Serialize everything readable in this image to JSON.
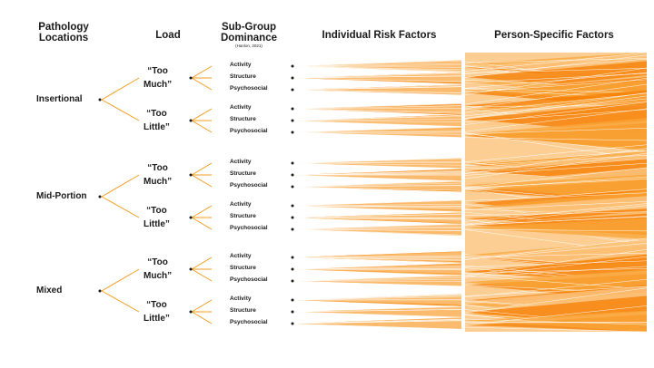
{
  "headers": {
    "pathology_locations": "Pathology Locations",
    "load": "Load",
    "sub_group_dominance": "Sub-Group Dominance",
    "sub_group_citation": "(Hanlon, 2021)",
    "individual_risk_factors": "Individual Risk Factors",
    "person_specific_factors": "Person-Specific Factors"
  },
  "locations": [
    {
      "label": "Insertional",
      "loads": [
        {
          "line1": "“Too",
          "line2": "Much”",
          "subgroups": [
            "Activity",
            "Structure",
            "Psychosocial"
          ]
        },
        {
          "line1": "“Too",
          "line2": "Little”",
          "subgroups": [
            "Activity",
            "Structure",
            "Psychosocial"
          ]
        }
      ]
    },
    {
      "label": "Mid-Portion",
      "loads": [
        {
          "line1": "“Too",
          "line2": "Much”",
          "subgroups": [
            "Activity",
            "Structure",
            "Psychosocial"
          ]
        },
        {
          "line1": "“Too",
          "line2": "Little”",
          "subgroups": [
            "Activity",
            "Structure",
            "Psychosocial"
          ]
        }
      ]
    },
    {
      "label": "Mixed",
      "loads": [
        {
          "line1": "“Too",
          "line2": "Much”",
          "subgroups": [
            "Activity",
            "Structure",
            "Psychosocial"
          ]
        },
        {
          "line1": "“Too",
          "line2": "Little”",
          "subgroups": [
            "Activity",
            "Structure",
            "Psychosocial"
          ]
        }
      ]
    }
  ],
  "colors": {
    "branch": "#f39c1f",
    "fan_dark": "#f57c00",
    "fan_mid": "#f9a53a",
    "fan_light": "#fcc98a",
    "dot": "#1a1a1a"
  }
}
